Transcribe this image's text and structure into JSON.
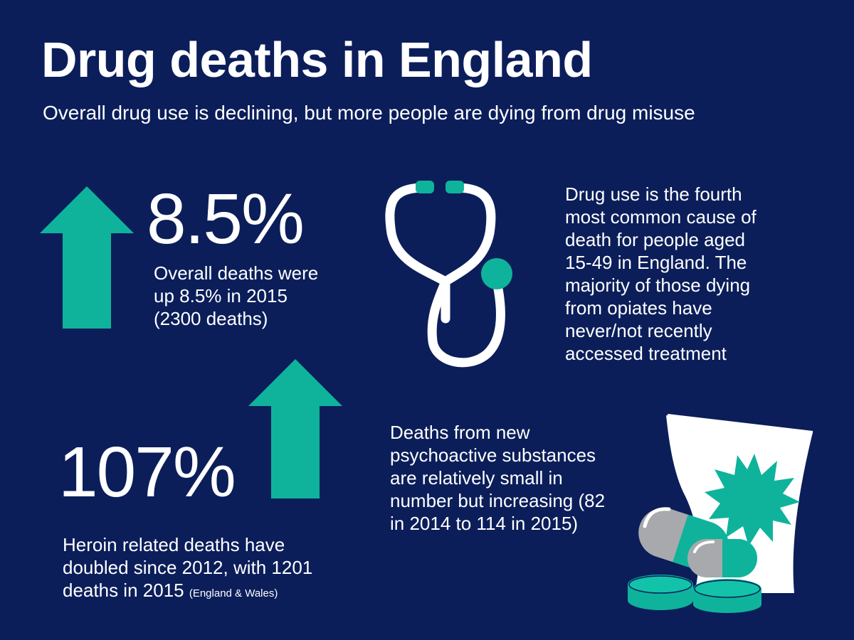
{
  "title": "Drug deaths in England",
  "subtitle": "Overall drug use is declining, but more people are dying from drug misuse",
  "stats": {
    "overall": {
      "value": "8.5%",
      "lines": [
        "Overall deaths were",
        "up 8.5% in 2015",
        "(2300 deaths)"
      ]
    },
    "heroin": {
      "value": "107%",
      "lines": [
        "Heroin related deaths have",
        "doubled since 2012, with 1201",
        "deaths in 2015"
      ],
      "note": "(England & Wales)"
    }
  },
  "facts": {
    "cause_of_death": {
      "lines": [
        "Drug use is the fourth",
        "most common cause of",
        "death for people aged",
        "15-49 in England. The",
        "majority of those dying",
        "from opiates have",
        "never/not recently",
        "accessed treatment"
      ]
    },
    "psychoactive": {
      "lines": [
        "Deaths from new",
        "psychoactive substances",
        "are relatively small in",
        "number but increasing (82",
        "in 2014 to 114 in 2015)"
      ]
    }
  },
  "icons": [
    "up-arrow-icon",
    "stethoscope-icon",
    "pills-bag-icon"
  ],
  "colors": {
    "background": "#0b1e5a",
    "accent": "#0fb39b",
    "text": "#ffffff",
    "pill_grey": "#a7a9ac"
  }
}
